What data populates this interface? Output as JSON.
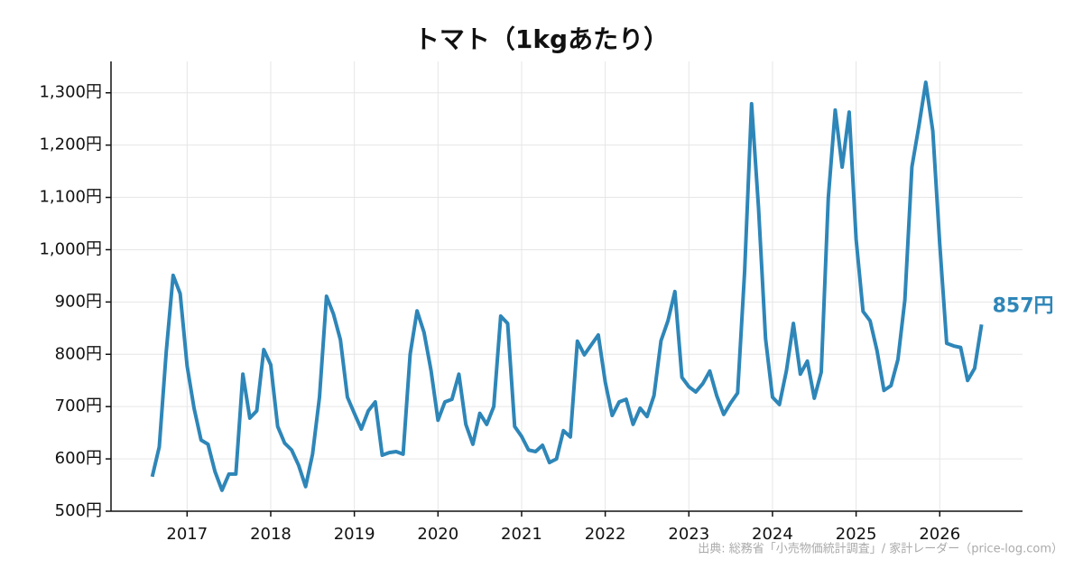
{
  "chart_data": {
    "type": "line",
    "title": "トマト（1kgあたり）",
    "source": "出典: 総務省「小売物価統計調査」/ 家計レーダー（price-log.com）",
    "color": "#2e86b8",
    "grid": true,
    "x": [
      2016.583,
      2016.667,
      2016.75,
      2016.833,
      2016.917,
      2017,
      2017.083,
      2017.167,
      2017.25,
      2017.333,
      2017.417,
      2017.5,
      2017.583,
      2017.667,
      2017.75,
      2017.833,
      2017.917,
      2018,
      2018.083,
      2018.167,
      2018.25,
      2018.333,
      2018.417,
      2018.5,
      2018.583,
      2018.667,
      2018.75,
      2018.833,
      2018.917,
      2019,
      2019.083,
      2019.167,
      2019.25,
      2019.333,
      2019.417,
      2019.5,
      2019.583,
      2019.667,
      2019.75,
      2019.833,
      2019.917,
      2020,
      2020.083,
      2020.167,
      2020.25,
      2020.333,
      2020.417,
      2020.5,
      2020.583,
      2020.667,
      2020.75,
      2020.833,
      2020.917,
      2021,
      2021.083,
      2021.167,
      2021.25,
      2021.333,
      2021.417,
      2021.5,
      2021.583,
      2021.667,
      2021.75,
      2021.833,
      2021.917,
      2022,
      2022.083,
      2022.167,
      2022.25,
      2022.333,
      2022.417,
      2022.5,
      2022.583,
      2022.667,
      2022.75,
      2022.833,
      2022.917,
      2023,
      2023.083,
      2023.167,
      2023.25,
      2023.333,
      2023.417,
      2023.5,
      2023.583,
      2023.667,
      2023.75,
      2023.833,
      2023.917,
      2024,
      2024.083,
      2024.167,
      2024.25,
      2024.333,
      2024.417,
      2024.5,
      2024.583,
      2024.667,
      2024.75,
      2024.833,
      2024.917,
      2025,
      2025.083,
      2025.167,
      2025.25,
      2025.333,
      2025.417,
      2025.5,
      2025.583,
      2025.667,
      2025.75,
      2025.833,
      2025.917,
      2026,
      2026.083,
      2026.167,
      2026.25,
      2026.333,
      2026.417,
      2026.5
    ],
    "values": [
      566,
      623,
      804,
      951,
      916,
      778,
      697,
      636,
      628,
      576,
      540,
      571,
      571,
      762,
      678,
      692,
      809,
      780,
      662,
      630,
      617,
      588,
      547,
      609,
      718,
      911,
      877,
      828,
      718,
      687,
      657,
      692,
      709,
      607,
      612,
      614,
      609,
      800,
      883,
      842,
      769,
      674,
      709,
      714,
      762,
      666,
      628,
      687,
      666,
      700,
      873,
      859,
      662,
      643,
      617,
      614,
      626,
      593,
      600,
      654,
      642,
      825,
      799,
      818,
      837,
      747,
      683,
      709,
      714,
      666,
      697,
      681,
      721,
      826,
      864,
      920,
      756,
      738,
      728,
      744,
      768,
      721,
      685,
      707,
      726,
      959,
      1279,
      1080,
      830,
      718,
      704,
      769,
      859,
      762,
      787,
      716,
      766,
      1098,
      1267,
      1158,
      1263,
      1020,
      882,
      864,
      807,
      731,
      740,
      790,
      904,
      1158,
      1236,
      1320,
      1227,
      1011,
      821,
      816,
      813,
      750,
      773,
      857
    ],
    "value_labels": [
      null,
      null,
      null,
      null,
      null,
      null,
      null,
      null,
      null,
      null,
      null,
      null,
      null,
      null,
      null,
      null,
      null,
      null,
      null,
      null,
      null,
      null,
      null,
      null,
      null,
      null,
      null,
      null,
      null,
      null,
      null,
      null,
      null,
      null,
      null,
      null,
      null,
      null,
      null,
      null,
      null,
      null,
      null,
      null,
      null,
      null,
      null,
      null,
      null,
      null,
      null,
      null,
      null,
      null,
      null,
      null,
      null,
      null,
      null,
      null,
      null,
      null,
      null,
      null,
      null,
      null,
      null,
      null,
      null,
      null,
      null,
      null,
      null,
      null,
      null,
      null,
      null,
      null,
      null,
      null,
      null,
      null,
      null,
      null,
      null,
      null,
      null,
      null,
      null,
      null,
      null,
      null,
      null,
      null,
      null,
      null,
      null,
      null,
      null,
      null,
      null,
      null,
      null,
      null,
      null,
      null,
      null,
      null,
      null,
      null,
      null,
      null,
      null,
      null,
      null,
      null,
      null,
      null,
      null,
      "857円"
    ],
    "xlim": [
      2016.09,
      2026.99
    ],
    "xticks": [
      2017,
      2018,
      2019,
      2020,
      2021,
      2022,
      2023,
      2024,
      2025,
      2026
    ],
    "ylim": [
      500,
      1360
    ],
    "yticks": [
      {
        "value": 500,
        "label": "500円"
      },
      {
        "value": 600,
        "label": "600円"
      },
      {
        "value": 700,
        "label": "700円"
      },
      {
        "value": 800,
        "label": "800円"
      },
      {
        "value": 900,
        "label": "900円"
      },
      {
        "value": 1000,
        "label": "1,000円"
      },
      {
        "value": 1100,
        "label": "1,100円"
      },
      {
        "value": 1200,
        "label": "1,200円"
      },
      {
        "value": 1300,
        "label": "1,300円"
      }
    ]
  }
}
